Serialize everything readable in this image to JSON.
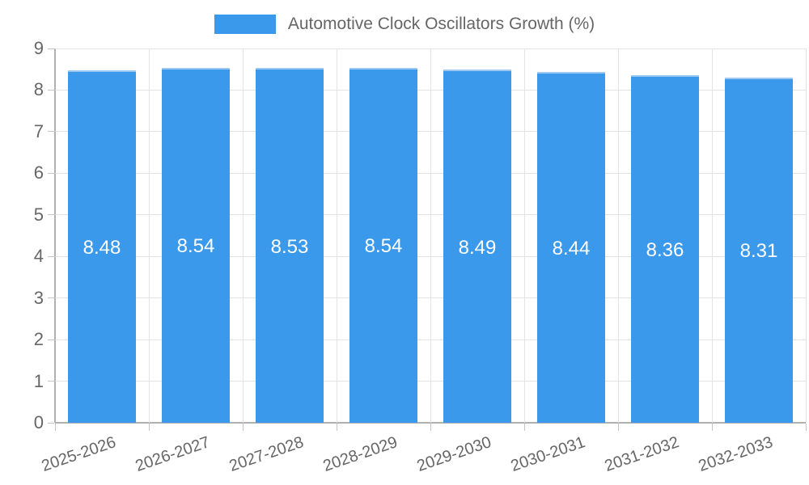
{
  "legend": {
    "label": "Automotive Clock Oscillators Growth (%)",
    "swatch_color": "#3b99ec"
  },
  "chart_data": {
    "type": "bar",
    "title": "Automotive Clock Oscillators Growth (%)",
    "categories": [
      "2025-2026",
      "2026-2027",
      "2027-2028",
      "2028-2029",
      "2029-2030",
      "2030-2031",
      "2031-2032",
      "2032-2033"
    ],
    "values": [
      8.48,
      8.54,
      8.53,
      8.54,
      8.49,
      8.44,
      8.36,
      8.31
    ],
    "data_labels": [
      "8.48",
      "8.54",
      "8.53",
      "8.54",
      "8.49",
      "8.44",
      "8.36",
      "8.31"
    ],
    "xlabel": "",
    "ylabel": "",
    "ylim": [
      0,
      9
    ],
    "yticks": [
      0,
      1,
      2,
      3,
      4,
      5,
      6,
      7,
      8,
      9
    ],
    "grid": true,
    "legend_position": "top",
    "bar_color": "#3b99ec",
    "bar_border_color": "#9cc8f1",
    "data_label_color": "#ffffff",
    "axis_text_color": "#666666"
  }
}
